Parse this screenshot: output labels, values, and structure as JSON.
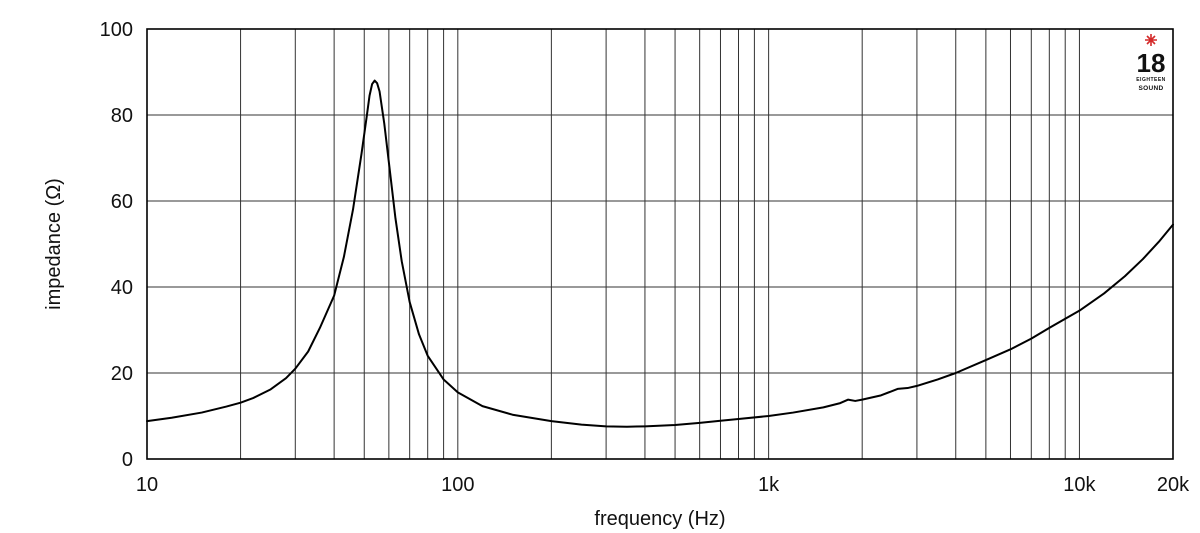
{
  "chart_data": {
    "type": "line",
    "xlabel": "frequency (Hz)",
    "ylabel": "impedance (Ω)",
    "x_scale": "log",
    "xlim": [
      10,
      20000
    ],
    "ylim": [
      0,
      100
    ],
    "grid": true,
    "x_ticks": [
      {
        "value": 10,
        "label": "10"
      },
      {
        "value": 100,
        "label": "100"
      },
      {
        "value": 1000,
        "label": "1k"
      },
      {
        "value": 10000,
        "label": "10k"
      },
      {
        "value": 20000,
        "label": "20k"
      }
    ],
    "y_ticks": [
      {
        "value": 0,
        "label": "0"
      },
      {
        "value": 20,
        "label": "20"
      },
      {
        "value": 40,
        "label": "40"
      },
      {
        "value": 60,
        "label": "60"
      },
      {
        "value": 80,
        "label": "80"
      },
      {
        "value": 100,
        "label": "100"
      }
    ],
    "series": [
      {
        "color": "#000000",
        "points": [
          [
            10,
            8.8
          ],
          [
            12,
            9.6
          ],
          [
            15,
            10.8
          ],
          [
            18,
            12.2
          ],
          [
            20,
            13.1
          ],
          [
            22,
            14.2
          ],
          [
            25,
            16.2
          ],
          [
            28,
            18.8
          ],
          [
            30,
            21
          ],
          [
            33,
            25
          ],
          [
            36,
            30.5
          ],
          [
            40,
            38
          ],
          [
            43,
            47
          ],
          [
            46,
            58
          ],
          [
            49,
            71
          ],
          [
            51,
            80
          ],
          [
            52,
            84.5
          ],
          [
            53,
            87.2
          ],
          [
            54,
            88
          ],
          [
            55,
            87.4
          ],
          [
            56,
            85.5
          ],
          [
            58,
            78
          ],
          [
            60,
            69
          ],
          [
            63,
            56
          ],
          [
            66,
            46
          ],
          [
            70,
            36.5
          ],
          [
            75,
            29
          ],
          [
            80,
            24
          ],
          [
            90,
            18.5
          ],
          [
            100,
            15.5
          ],
          [
            120,
            12.3
          ],
          [
            150,
            10.3
          ],
          [
            200,
            8.8
          ],
          [
            250,
            8.0
          ],
          [
            300,
            7.6
          ],
          [
            350,
            7.5
          ],
          [
            400,
            7.6
          ],
          [
            500,
            7.9
          ],
          [
            600,
            8.4
          ],
          [
            700,
            8.9
          ],
          [
            800,
            9.3
          ],
          [
            1000,
            10.0
          ],
          [
            1200,
            10.8
          ],
          [
            1500,
            12.0
          ],
          [
            1700,
            13.0
          ],
          [
            1800,
            13.8
          ],
          [
            1900,
            13.5
          ],
          [
            2000,
            13.8
          ],
          [
            2300,
            14.8
          ],
          [
            2600,
            16.3
          ],
          [
            2800,
            16.5
          ],
          [
            3000,
            17.0
          ],
          [
            3500,
            18.5
          ],
          [
            4000,
            20.0
          ],
          [
            5000,
            23.0
          ],
          [
            6000,
            25.5
          ],
          [
            7000,
            28.0
          ],
          [
            8000,
            30.5
          ],
          [
            10000,
            34.5
          ],
          [
            12000,
            38.5
          ],
          [
            14000,
            42.5
          ],
          [
            16000,
            46.5
          ],
          [
            18000,
            50.5
          ],
          [
            20000,
            54.5
          ]
        ]
      }
    ]
  },
  "logo": {
    "number": "18",
    "small_text": "EIGHTEEN",
    "word": "SOUND",
    "star_color": "#d42a2a"
  }
}
